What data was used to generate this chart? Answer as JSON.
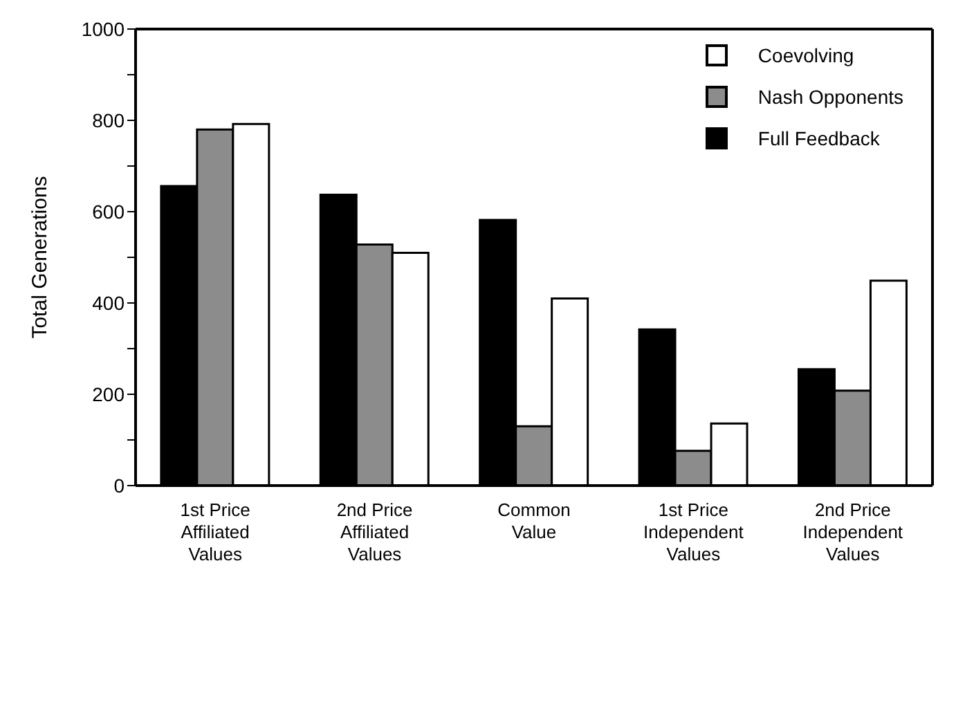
{
  "chart_data": {
    "type": "bar",
    "ylabel": "Total Generations",
    "categories": [
      "1st Price Affiliated Values",
      "2nd Price Affiliated Values",
      "Common Value",
      "1st Price Independent Values",
      "2nd Price Independent Values"
    ],
    "series": [
      {
        "name": "Full Feedback",
        "color": "#000000",
        "values": [
          656,
          637,
          582,
          342,
          255
        ]
      },
      {
        "name": "Nash Opponents",
        "color": "#8c8c8c",
        "values": [
          780,
          528,
          130,
          76,
          208
        ]
      },
      {
        "name": "Coevolving",
        "color": "#ffffff",
        "values": [
          792,
          510,
          410,
          136,
          449
        ]
      }
    ],
    "ylim": [
      0,
      1000
    ],
    "yticks": [
      0,
      {
        "value": 100,
        "label": null
      },
      200,
      {
        "value": 300,
        "label": null
      },
      400,
      {
        "value": 500,
        "label": null
      },
      600,
      {
        "value": 700,
        "label": null
      },
      800,
      {
        "value": 900,
        "label": null
      },
      1000
    ],
    "legend": "top right"
  }
}
